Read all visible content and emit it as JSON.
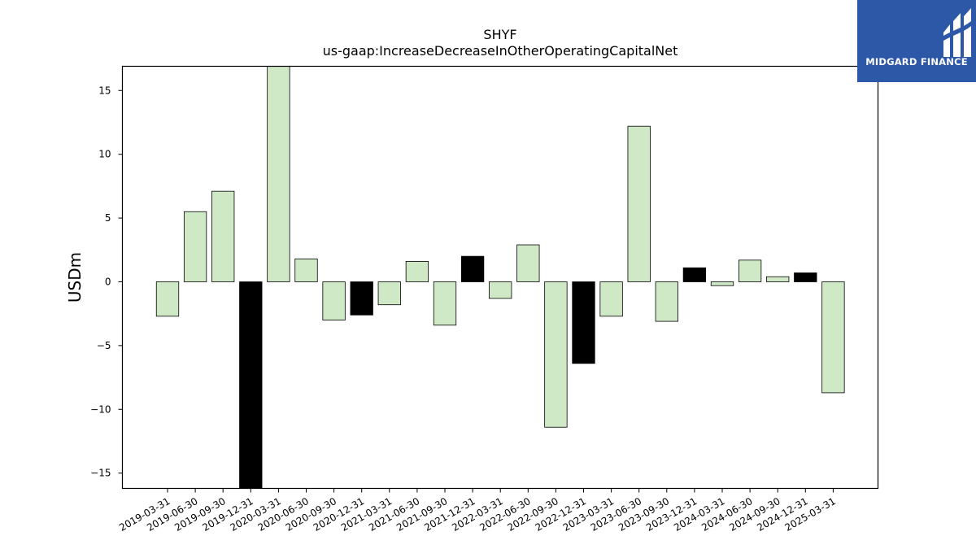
{
  "brand": {
    "name": "MIDGARD FINANCE",
    "color": "#2d58a8"
  },
  "chart_data": {
    "type": "bar",
    "title": "SHYF",
    "subtitle": "us-gaap:IncreaseDecreaseInOtherOperatingCapitalNet",
    "ylabel": "USDm",
    "xlabel": "",
    "ylim": [
      -16.2,
      16.9
    ],
    "yticks": [
      -15,
      -10,
      -5,
      0,
      5,
      10,
      15
    ],
    "ytick_labels": [
      "−15",
      "−10",
      "−5",
      "0",
      "5",
      "10",
      "15"
    ],
    "grid": false,
    "colors": {
      "default": "#cfe9c7",
      "highlight": "#000000",
      "edge": "#000000"
    },
    "categories": [
      "2019-03-31",
      "2019-06-30",
      "2019-09-30",
      "2019-12-31",
      "2020-03-31",
      "2020-06-30",
      "2020-09-30",
      "2020-12-31",
      "2021-03-31",
      "2021-06-30",
      "2021-09-30",
      "2021-12-31",
      "2022-03-31",
      "2022-06-30",
      "2022-09-30",
      "2022-12-31",
      "2023-03-31",
      "2023-06-30",
      "2023-09-30",
      "2023-12-31",
      "2024-03-31",
      "2024-06-30",
      "2024-09-30",
      "2024-12-31",
      "2025-03-31"
    ],
    "values": [
      -2.7,
      5.5,
      7.1,
      -16.2,
      16.9,
      1.8,
      -3.0,
      -2.6,
      -1.8,
      1.6,
      -3.4,
      2.0,
      -1.3,
      2.9,
      -11.4,
      -6.4,
      -2.7,
      12.2,
      -3.1,
      1.1,
      -0.3,
      1.7,
      0.4,
      0.7,
      -8.7
    ],
    "highlight": [
      false,
      false,
      false,
      true,
      false,
      false,
      false,
      true,
      false,
      false,
      false,
      true,
      false,
      false,
      false,
      true,
      false,
      false,
      false,
      true,
      false,
      false,
      false,
      true,
      false
    ]
  }
}
